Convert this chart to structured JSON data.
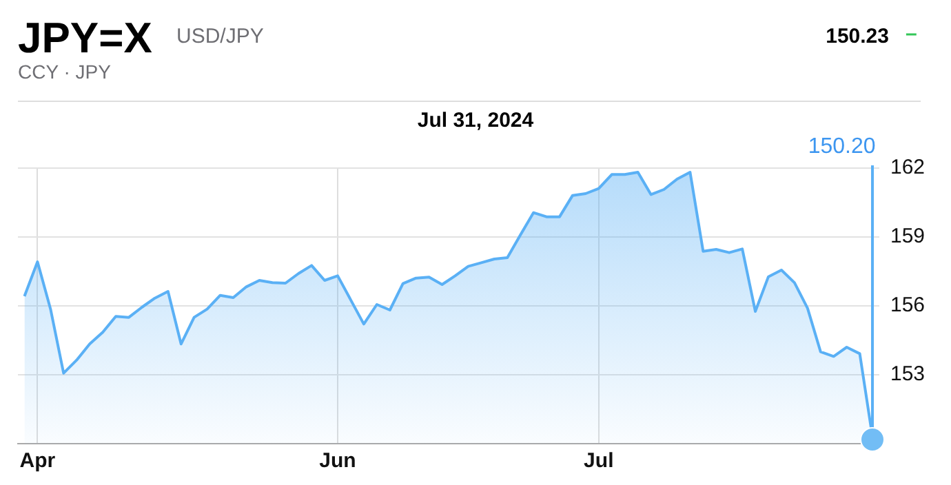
{
  "chart_data": {
    "type": "area",
    "title": "JPY=X",
    "subtitle": "USD/JPY",
    "annotations": [
      "CCY · JPY",
      "150.23",
      "–",
      "Jul 31, 2024",
      "150.20"
    ],
    "categories": [
      null,
      "Apr",
      null,
      null,
      null,
      null,
      null,
      null,
      null,
      null,
      null,
      null,
      null,
      null,
      null,
      null,
      null,
      null,
      null,
      null,
      null,
      null,
      null,
      null,
      "Jun",
      null,
      null,
      null,
      null,
      null,
      null,
      null,
      null,
      null,
      null,
      null,
      null,
      null,
      null,
      null,
      null,
      null,
      null,
      null,
      "Jul",
      null,
      null,
      null,
      null,
      null,
      null,
      null,
      null,
      null,
      null,
      null,
      null,
      null,
      null,
      null,
      null,
      null,
      null,
      null,
      null,
      null
    ],
    "series": [
      {
        "color": "#5ab0f5",
        "values": [
          156.42,
          157.92,
          155.86,
          153.07,
          153.64,
          154.34,
          154.85,
          155.54,
          155.5,
          155.94,
          156.34,
          156.63,
          154.34,
          155.5,
          155.86,
          156.46,
          156.36,
          156.83,
          157.11,
          157.01,
          156.99,
          157.41,
          157.76,
          157.11,
          157.31,
          156.26,
          155.21,
          156.06,
          155.82,
          156.97,
          157.21,
          157.25,
          156.93,
          157.31,
          157.72,
          157.88,
          158.04,
          158.1,
          159.09,
          160.06,
          159.88,
          159.88,
          160.81,
          160.89,
          161.11,
          161.72,
          161.72,
          161.82,
          160.85,
          161.07,
          161.52,
          161.82,
          158.38,
          158.46,
          158.32,
          158.48,
          155.76,
          157.27,
          157.56,
          157.01,
          155.9,
          154.0,
          153.8,
          154.2,
          153.92,
          150.2
        ]
      }
    ],
    "ylim": [
      150,
      162
    ],
    "yticks": [
      153,
      156,
      159,
      162
    ],
    "grid": true
  }
}
